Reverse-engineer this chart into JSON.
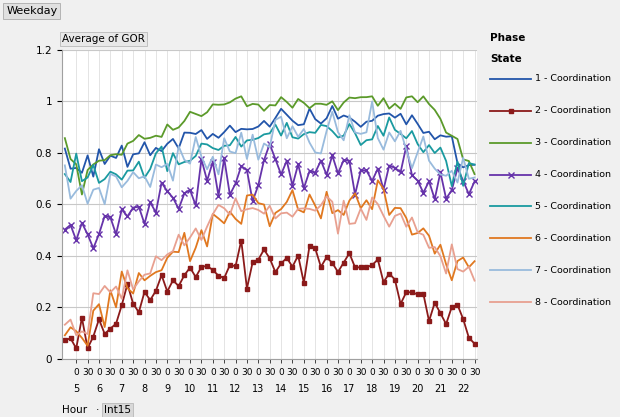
{
  "title_top": "Weekday",
  "ylabel": "Average of GOR",
  "xlabel_main": "Hour",
  "xlabel_sub": "Int15",
  "ylim": [
    0,
    1.2
  ],
  "yticks": [
    0,
    0.2,
    0.4,
    0.6,
    0.8,
    1.0,
    1.2
  ],
  "bg_color": "#f0f0f0",
  "plot_bg": "#ffffff",
  "legend_title_line1": "Phase",
  "legend_title_line2": "State",
  "series": [
    {
      "label": "1 - Coordination",
      "color": "#2255AA",
      "lw": 1.3,
      "marker": null
    },
    {
      "label": "2 - Coordination",
      "color": "#8B1A1A",
      "lw": 1.3,
      "marker": "s",
      "ms": 3
    },
    {
      "label": "3 - Coordination",
      "color": "#5B9A2A",
      "lw": 1.3,
      "marker": null
    },
    {
      "label": "4 - Coordination",
      "color": "#6633AA",
      "lw": 1.3,
      "marker": "x",
      "ms": 4
    },
    {
      "label": "5 - Coordination",
      "color": "#1A9AA0",
      "lw": 1.3,
      "marker": null
    },
    {
      "label": "6 - Coordination",
      "color": "#E07820",
      "lw": 1.3,
      "marker": null
    },
    {
      "label": "7 - Coordination",
      "color": "#99BBDD",
      "lw": 1.3,
      "marker": null
    },
    {
      "label": "8 - Coordination",
      "color": "#E8A090",
      "lw": 1.3,
      "marker": null
    }
  ]
}
